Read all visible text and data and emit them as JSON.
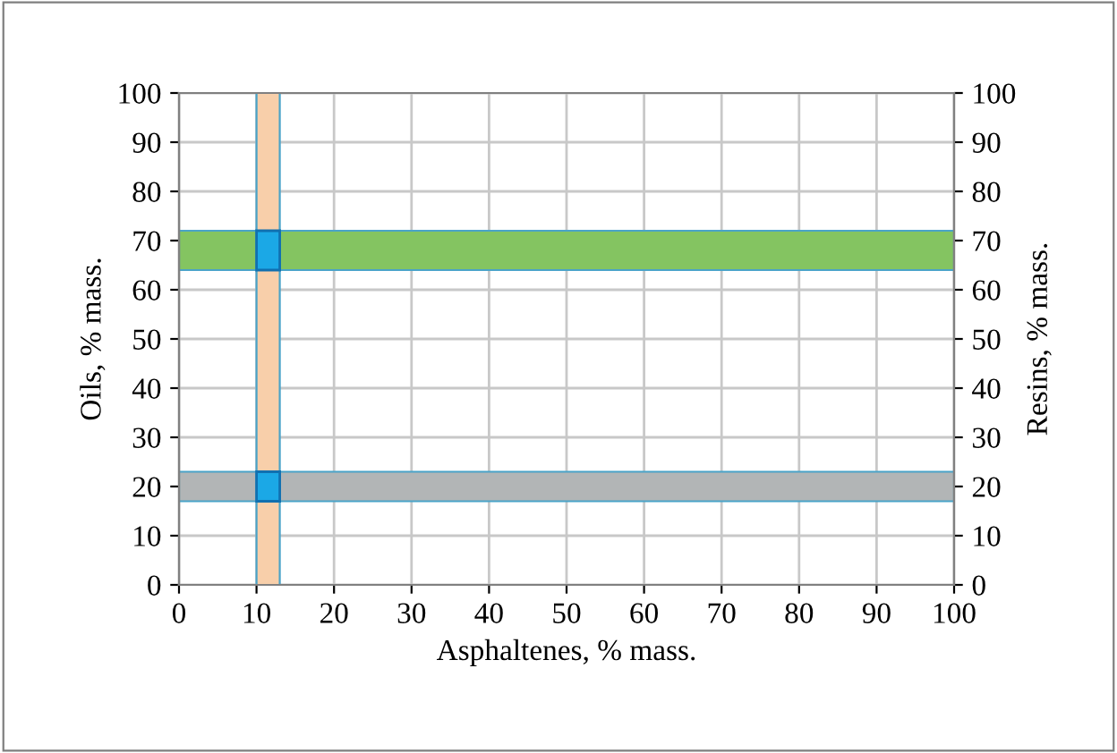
{
  "chart_data": {
    "type": "line",
    "xlabel": "Asphaltenes, % mass.",
    "ylabel": "Oils, % mass.",
    "y2label": "Resins, % mass.",
    "xlim": [
      0,
      100
    ],
    "xticks": [
      0,
      10,
      20,
      30,
      40,
      50,
      60,
      70,
      80,
      90,
      100
    ],
    "ylim": [
      0,
      100
    ],
    "yticks": [
      0,
      10,
      20,
      30,
      40,
      50,
      60,
      70,
      80,
      90,
      100
    ],
    "y2lim": [
      0,
      100
    ],
    "y2ticks": [
      0,
      10,
      20,
      30,
      40,
      50,
      60,
      70,
      80,
      90,
      100
    ],
    "grid": true,
    "legend": false,
    "bands": [
      {
        "axis": "x",
        "from": 10,
        "to": 13,
        "color": "#f8cfaa"
      },
      {
        "axis": "y",
        "from": 64,
        "to": 72,
        "color": "#84c461"
      },
      {
        "axis": "y2",
        "from": 17,
        "to": 23,
        "color": "#b2b5b6"
      }
    ]
  }
}
